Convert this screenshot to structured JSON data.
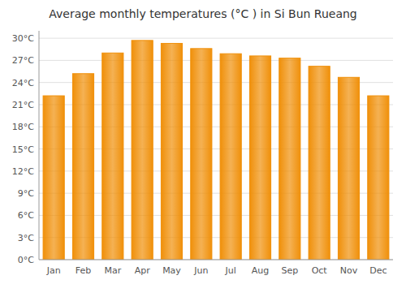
{
  "chart_data": {
    "type": "bar",
    "title": "Average monthly temperatures (°C ) in Si Bun Rueang",
    "categories": [
      "Jan",
      "Feb",
      "Mar",
      "Apr",
      "May",
      "Jun",
      "Jul",
      "Aug",
      "Sep",
      "Oct",
      "Nov",
      "Dec"
    ],
    "values": [
      22.2,
      25.2,
      28.0,
      29.7,
      29.3,
      28.6,
      27.9,
      27.6,
      27.3,
      26.2,
      24.7,
      22.2
    ],
    "color": "#F0900A",
    "ylim": [
      0,
      31
    ],
    "yticks": [
      {
        "value": 0,
        "label": "0°C"
      },
      {
        "value": 3,
        "label": "3°C"
      },
      {
        "value": 6,
        "label": "6°C"
      },
      {
        "value": 9,
        "label": "9°C"
      },
      {
        "value": 12,
        "label": "12°C"
      },
      {
        "value": 15,
        "label": "15°C"
      },
      {
        "value": 18,
        "label": "18°C"
      },
      {
        "value": 21,
        "label": "21°C"
      },
      {
        "value": 24,
        "label": "24°C"
      },
      {
        "value": 27,
        "label": "27°C"
      },
      {
        "value": 30,
        "label": "30°C"
      }
    ],
    "grid": true
  }
}
